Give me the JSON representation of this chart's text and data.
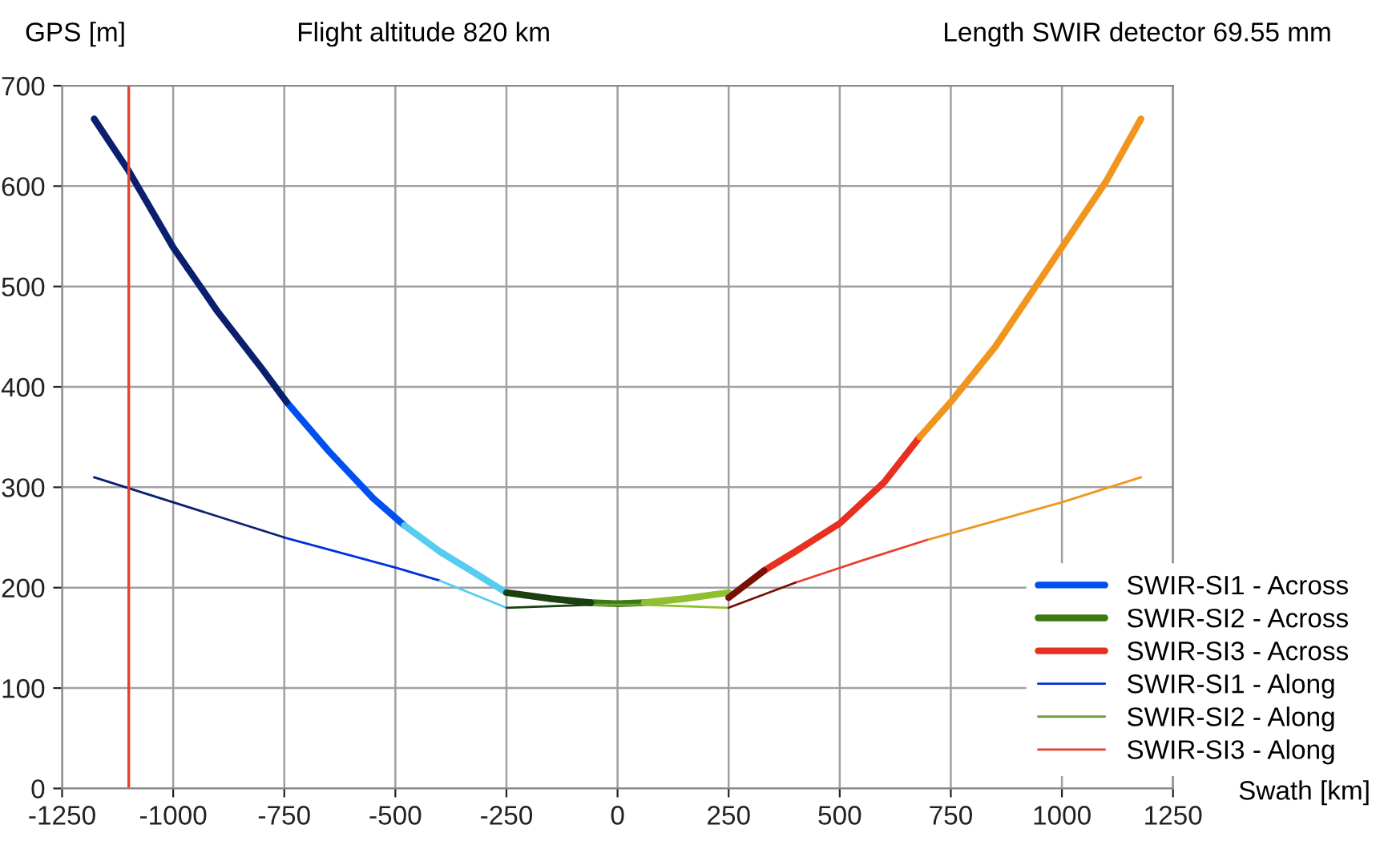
{
  "chart_data": {
    "type": "line",
    "title": "Flight altitude 820 km",
    "ylabel": "GPS [m]",
    "xlabel": "Swath [km]",
    "annotations": [
      "Length SWIR detector 69.55 mm"
    ],
    "xlim": [
      -1250,
      1250
    ],
    "xticks": [
      -1250,
      -1000,
      -750,
      -500,
      -250,
      0,
      250,
      500,
      750,
      1000,
      1250
    ],
    "ylim": [
      0,
      700
    ],
    "yticks": [
      0,
      100,
      200,
      300,
      400,
      500,
      600,
      700
    ],
    "grid": true,
    "legend": "bottom right",
    "marker": "none",
    "line_style": "solid",
    "ref_lines": [
      {
        "axis": "x",
        "value": -1100,
        "color": "#e8402a"
      }
    ],
    "series": [
      {
        "name": "SWIR-SI1 - Across",
        "color": "#0050f0",
        "x": [
          -745,
          -650,
          -550,
          -480
        ],
        "values": [
          385,
          336,
          289,
          262
        ]
      },
      {
        "name": "SWIR-SI2 - Across",
        "color": "#3a7a10",
        "x": [
          -60,
          0,
          60
        ],
        "values": [
          185,
          184,
          185
        ]
      },
      {
        "name": "SWIR-SI3 - Across",
        "color": "#e83020",
        "x": [
          330,
          400,
          500,
          600,
          680
        ],
        "values": [
          217,
          236,
          264,
          305,
          350
        ]
      },
      {
        "name": "SWIR-SI1 - Along",
        "color": "#0030e0",
        "x": [
          -750,
          -500,
          -400
        ],
        "values": [
          250,
          220,
          207
        ]
      },
      {
        "name": "SWIR-SI2 - Along",
        "color": "#70a040",
        "x": [
          -60,
          60
        ],
        "values": [
          183,
          183
        ]
      },
      {
        "name": "SWIR-SI3 - Along",
        "color": "#e84030",
        "x": [
          400,
          550,
          700
        ],
        "values": [
          205,
          227,
          248
        ]
      },
      {
        "color": "#0a1f6e",
        "x": [
          -1178,
          -1100,
          -1000,
          -900,
          -800,
          -745
        ],
        "values": [
          667,
          615,
          539,
          475,
          418,
          385
        ]
      },
      {
        "color": "#55ccf0",
        "x": [
          -480,
          -400,
          -330,
          -250
        ],
        "values": [
          262,
          236,
          217,
          195
        ]
      },
      {
        "color": "#1a4010",
        "x": [
          -250,
          -150,
          -60
        ],
        "values": [
          195,
          189,
          185
        ]
      },
      {
        "color": "#90c030",
        "x": [
          60,
          150,
          250
        ],
        "values": [
          185,
          189,
          195
        ]
      },
      {
        "color": "#7a1005",
        "x": [
          250,
          330
        ],
        "values": [
          190,
          217
        ]
      },
      {
        "color": "#f0961e",
        "x": [
          680,
          750,
          850,
          1000,
          1100,
          1178
        ],
        "values": [
          350,
          385,
          440,
          539,
          605,
          667
        ]
      },
      {
        "color": "#0a1f6e",
        "x": [
          -1178,
          -1000,
          -750
        ],
        "values": [
          310,
          285,
          250
        ]
      },
      {
        "color": "#55ccf0",
        "x": [
          -400,
          -250
        ],
        "values": [
          207,
          180
        ]
      },
      {
        "color": "#1a4010",
        "x": [
          -250,
          -60
        ],
        "values": [
          180,
          183
        ]
      },
      {
        "color": "#90c030",
        "x": [
          60,
          250
        ],
        "values": [
          183,
          180
        ]
      },
      {
        "color": "#7a1005",
        "x": [
          250,
          400
        ],
        "values": [
          180,
          205
        ]
      },
      {
        "color": "#f0961e",
        "x": [
          700,
          1000,
          1178
        ],
        "values": [
          248,
          285,
          310
        ]
      }
    ]
  }
}
